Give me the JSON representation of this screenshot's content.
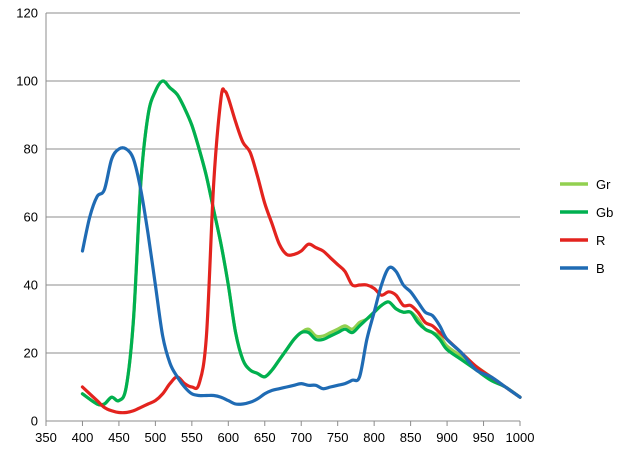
{
  "chart_data": {
    "type": "line",
    "title": "",
    "xlabel": "",
    "ylabel": "",
    "xlim": [
      350,
      1000
    ],
    "ylim": [
      0,
      120
    ],
    "x_ticks": [
      "350",
      "400",
      "450",
      "500",
      "550",
      "600",
      "650",
      "700",
      "750",
      "800",
      "850",
      "900",
      "950",
      "1000"
    ],
    "y_ticks": [
      "0",
      "20",
      "40",
      "60",
      "80",
      "100",
      "120"
    ],
    "grid": "horizontal",
    "legend_position": "right",
    "series": [
      {
        "name": "Gr",
        "color": "#92d050",
        "x": [
          400,
          420,
          430,
          440,
          450,
          460,
          470,
          480,
          490,
          500,
          510,
          520,
          530,
          540,
          550,
          560,
          570,
          580,
          590,
          600,
          610,
          620,
          630,
          640,
          650,
          660,
          670,
          680,
          690,
          700,
          710,
          720,
          730,
          740,
          750,
          760,
          770,
          780,
          790,
          800,
          810,
          820,
          830,
          840,
          850,
          860,
          870,
          880,
          890,
          900,
          920,
          940,
          960,
          980,
          1000
        ],
        "y": [
          8,
          5,
          5,
          7,
          6,
          10,
          30,
          70,
          90,
          97,
          100,
          98,
          96,
          92,
          87,
          80,
          72,
          62,
          52,
          40,
          26,
          18,
          15,
          14,
          13,
          15,
          18,
          21,
          24,
          26,
          27,
          25,
          25,
          26,
          27,
          28,
          27,
          29,
          30,
          32,
          34,
          35,
          33,
          32,
          32,
          30,
          27,
          26,
          25,
          22,
          19,
          16,
          13,
          10,
          7
        ]
      },
      {
        "name": "Gb",
        "color": "#00b050",
        "x": [
          400,
          420,
          430,
          440,
          450,
          460,
          470,
          480,
          490,
          500,
          510,
          520,
          530,
          540,
          550,
          560,
          570,
          580,
          590,
          600,
          610,
          620,
          630,
          640,
          650,
          660,
          670,
          680,
          690,
          700,
          710,
          720,
          730,
          740,
          750,
          760,
          770,
          780,
          790,
          800,
          810,
          820,
          830,
          840,
          850,
          860,
          870,
          880,
          890,
          900,
          920,
          940,
          960,
          980,
          1000
        ],
        "y": [
          8,
          5,
          5,
          7,
          6,
          10,
          30,
          70,
          90,
          97,
          100,
          98,
          96,
          92,
          87,
          80,
          72,
          62,
          52,
          40,
          26,
          18,
          15,
          14,
          13,
          15,
          18,
          21,
          24,
          26,
          26,
          24,
          24,
          25,
          26,
          27,
          26,
          28,
          30,
          32,
          34,
          35,
          33,
          32,
          32,
          29,
          27,
          26,
          24,
          21,
          18,
          15,
          12,
          10,
          7
        ]
      },
      {
        "name": "R",
        "color": "#e3231e",
        "x": [
          400,
          420,
          430,
          440,
          450,
          460,
          470,
          480,
          490,
          500,
          510,
          520,
          530,
          540,
          550,
          560,
          570,
          580,
          590,
          595,
          600,
          610,
          620,
          630,
          640,
          650,
          660,
          670,
          680,
          690,
          700,
          710,
          720,
          730,
          740,
          750,
          760,
          770,
          780,
          790,
          800,
          810,
          820,
          830,
          840,
          850,
          860,
          870,
          880,
          890,
          900,
          920,
          940,
          960,
          980,
          1000
        ],
        "y": [
          10,
          6,
          4,
          3,
          2.5,
          2.5,
          3,
          4,
          5,
          6,
          8,
          11,
          13,
          11,
          10,
          11,
          25,
          70,
          95,
          97,
          95,
          88,
          82,
          79,
          72,
          64,
          58,
          52,
          49,
          49,
          50,
          52,
          51,
          50,
          48,
          46,
          44,
          40,
          40,
          40,
          39,
          37,
          38,
          37,
          34,
          34,
          32,
          29,
          28,
          26,
          24,
          20,
          16,
          13,
          10,
          7
        ]
      },
      {
        "name": "B",
        "color": "#1f6bb4",
        "x": [
          400,
          410,
          420,
          430,
          440,
          450,
          460,
          470,
          480,
          490,
          500,
          510,
          520,
          530,
          540,
          550,
          560,
          570,
          580,
          590,
          600,
          610,
          620,
          630,
          640,
          650,
          660,
          670,
          680,
          690,
          700,
          710,
          720,
          730,
          740,
          750,
          760,
          770,
          780,
          790,
          800,
          810,
          820,
          830,
          840,
          850,
          860,
          870,
          880,
          890,
          900,
          920,
          940,
          960,
          980,
          1000
        ],
        "y": [
          50,
          60,
          66,
          68,
          77,
          80,
          80,
          77,
          68,
          55,
          40,
          25,
          17,
          13,
          10,
          8,
          7.5,
          7.5,
          7.5,
          7,
          6,
          5,
          5,
          5.5,
          6.5,
          8,
          9,
          9.5,
          10,
          10.5,
          11,
          10.5,
          10.5,
          9.5,
          10,
          10.5,
          11,
          12,
          13,
          24,
          32,
          40,
          45,
          44,
          40,
          38,
          35,
          32,
          31,
          28,
          24,
          20,
          15,
          13,
          10,
          7
        ]
      }
    ]
  }
}
